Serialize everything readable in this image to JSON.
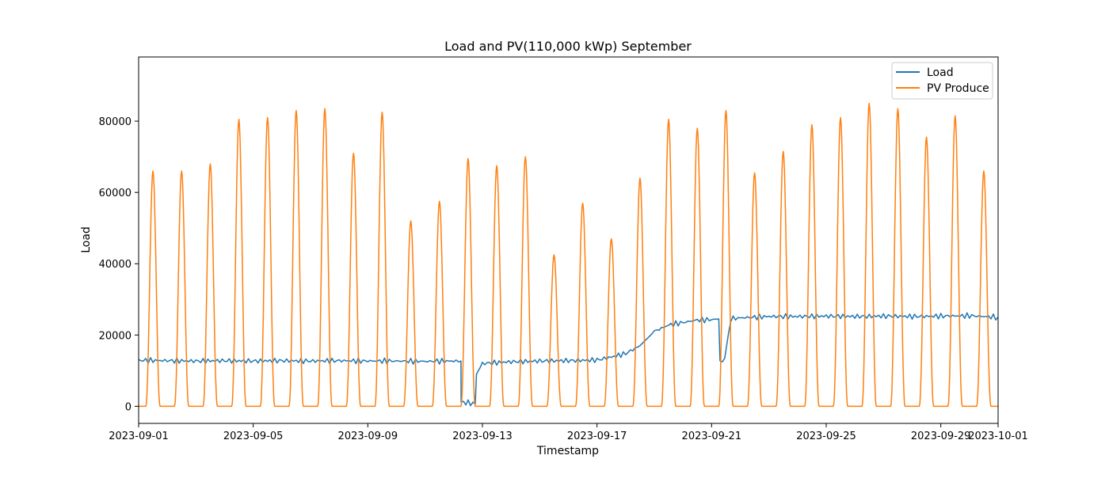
{
  "colors": {
    "load": "#1f77b4",
    "pv": "#ff7f0e",
    "axis": "#000000",
    "legend_border": "#cccccc"
  },
  "chart_data": {
    "type": "line",
    "title": "Load and PV(110,000 kWp) September",
    "xlabel": "Timestamp",
    "ylabel": "Load",
    "xlim": [
      "2023-09-01",
      "2023-10-01"
    ],
    "ylim": [
      -4800,
      98000
    ],
    "grid": false,
    "legend_position": "upper right",
    "x_ticks": [
      "2023-09-01",
      "2023-09-05",
      "2023-09-09",
      "2023-09-13",
      "2023-09-17",
      "2023-09-21",
      "2023-09-25",
      "2023-09-29",
      "2023-10-01"
    ],
    "x_tick_labels": [
      "2023-09-01",
      "2023-09-05",
      "2023-09-09",
      "2023-09-13",
      "2023-09-17",
      "2023-09-21",
      "2023-09-25",
      "2023-09-29",
      "2023-10-01"
    ],
    "y_ticks": [
      0,
      20000,
      40000,
      60000,
      80000
    ],
    "y_tick_labels": [
      "0",
      "20000",
      "40000",
      "60000",
      "80000"
    ],
    "series": [
      {
        "name": "Load",
        "color_key": "load",
        "points": [
          [
            "2023-09-01",
            12900
          ],
          [
            "2023-09-02",
            12800
          ],
          [
            "2023-09-03",
            12700
          ],
          [
            "2023-09-04",
            12800
          ],
          [
            "2023-09-05",
            12700
          ],
          [
            "2023-09-06",
            12800
          ],
          [
            "2023-09-07",
            12700
          ],
          [
            "2023-09-08",
            12800
          ],
          [
            "2023-09-09",
            12700
          ],
          [
            "2023-09-10",
            12700
          ],
          [
            "2023-09-11",
            12600
          ],
          [
            "2023-09-12",
            12700
          ],
          [
            "2023-09-12 06:00",
            12700
          ],
          [
            "2023-09-12 06:10",
            1200
          ],
          [
            "2023-09-12 18:00",
            700
          ],
          [
            "2023-09-12 19:00",
            9000
          ],
          [
            "2023-09-13",
            12000
          ],
          [
            "2023-09-14",
            12500
          ],
          [
            "2023-09-15",
            12700
          ],
          [
            "2023-09-16",
            12800
          ],
          [
            "2023-09-17",
            13000
          ],
          [
            "2023-09-17 12:00",
            13800
          ],
          [
            "2023-09-18",
            14800
          ],
          [
            "2023-09-18 12:00",
            17000
          ],
          [
            "2023-09-19",
            21000
          ],
          [
            "2023-09-19 12:00",
            22800
          ],
          [
            "2023-09-20",
            23500
          ],
          [
            "2023-09-20 12:00",
            24200
          ],
          [
            "2023-09-21",
            24300
          ],
          [
            "2023-09-21 06:00",
            24500
          ],
          [
            "2023-09-21 07:00",
            12500
          ],
          [
            "2023-09-21 11:00",
            13500
          ],
          [
            "2023-09-21 16:00",
            24500
          ],
          [
            "2023-09-22",
            24800
          ],
          [
            "2023-09-23",
            25200
          ],
          [
            "2023-09-24",
            25200
          ],
          [
            "2023-09-25",
            25300
          ],
          [
            "2023-09-26",
            25200
          ],
          [
            "2023-09-27",
            25300
          ],
          [
            "2023-09-28",
            25200
          ],
          [
            "2023-09-29",
            25300
          ],
          [
            "2023-09-30",
            25400
          ],
          [
            "2023-10-01",
            25000
          ]
        ]
      },
      {
        "name": "PV Produce",
        "color_key": "pv",
        "daily_peaks": [
          [
            "2023-09-01",
            66000
          ],
          [
            "2023-09-02",
            66000
          ],
          [
            "2023-09-03",
            68000
          ],
          [
            "2023-09-04",
            80500
          ],
          [
            "2023-09-05",
            81000
          ],
          [
            "2023-09-06",
            83000
          ],
          [
            "2023-09-07",
            83500
          ],
          [
            "2023-09-08",
            71000
          ],
          [
            "2023-09-09",
            82500
          ],
          [
            "2023-09-10",
            52000
          ],
          [
            "2023-09-11",
            57500
          ],
          [
            "2023-09-12",
            69500
          ],
          [
            "2023-09-13",
            67500
          ],
          [
            "2023-09-14",
            70000
          ],
          [
            "2023-09-15",
            42500
          ],
          [
            "2023-09-16",
            57000
          ],
          [
            "2023-09-17",
            47000
          ],
          [
            "2023-09-18",
            64000
          ],
          [
            "2023-09-19",
            80500
          ],
          [
            "2023-09-20",
            78000
          ],
          [
            "2023-09-21",
            83000
          ],
          [
            "2023-09-22",
            65500
          ],
          [
            "2023-09-23",
            71500
          ],
          [
            "2023-09-24",
            79000
          ],
          [
            "2023-09-25",
            81000
          ],
          [
            "2023-09-26",
            85000
          ],
          [
            "2023-09-27",
            83500
          ],
          [
            "2023-09-28",
            75500
          ],
          [
            "2023-09-29",
            81500
          ],
          [
            "2023-09-30",
            66000
          ]
        ],
        "daylight_hours": [
          "06:00",
          "18:00"
        ],
        "night_value": 0
      }
    ]
  }
}
